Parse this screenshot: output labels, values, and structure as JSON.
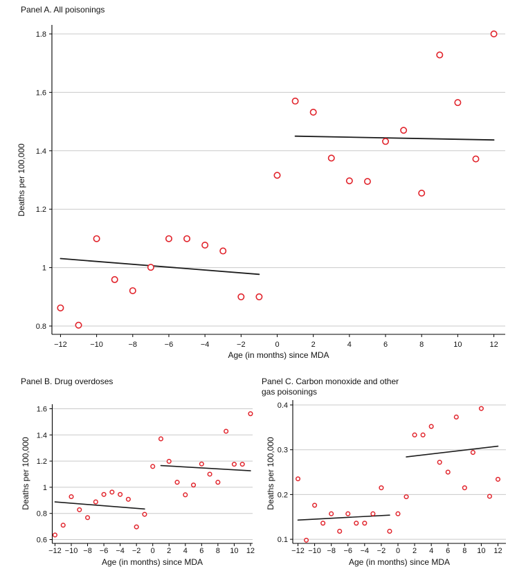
{
  "figure": {
    "background": "#ffffff",
    "marker_color": "#e1232b",
    "marker_fill": "#ffffff",
    "fit_line_color": "#1c1c1c",
    "grid_color": "#c9c9c9",
    "axis_color": "#000000",
    "text_color": "#111111"
  },
  "chart_data": [
    {
      "type": "scatter",
      "panel": "A",
      "title_lines": [
        "Panel A. All poisonings"
      ],
      "xlabel": "Age (in months) since MDA",
      "ylabel": "Deaths per 100,000",
      "x": [
        -12,
        -11,
        -10,
        -9,
        -8,
        -7,
        -6,
        -5,
        -4,
        -3,
        -2,
        -1,
        0,
        1,
        2,
        3,
        4,
        5,
        6,
        7,
        8,
        9,
        10,
        11,
        12
      ],
      "y": [
        0.862,
        0.803,
        1.099,
        0.959,
        0.921,
        1.001,
        1.099,
        1.099,
        1.077,
        1.057,
        0.9,
        0.9,
        1.316,
        1.57,
        1.532,
        1.375,
        1.297,
        1.295,
        1.432,
        1.47,
        1.255,
        1.728,
        1.565,
        1.372,
        1.8
      ],
      "fit_segments": [
        {
          "name": "pre",
          "x1": -12,
          "y1": 1.031,
          "x2": -1,
          "y2": 0.977
        },
        {
          "name": "post",
          "x1": 1,
          "y1": 1.45,
          "x2": 12,
          "y2": 1.437
        }
      ],
      "xticks": [
        -12,
        -10,
        -8,
        -6,
        -4,
        -2,
        0,
        2,
        4,
        6,
        8,
        10,
        12
      ],
      "xtick_labels": [
        "−12",
        "−10",
        "−8",
        "−6",
        "−4",
        "−2",
        "0",
        "2",
        "4",
        "6",
        "8",
        "10",
        "12"
      ],
      "yticks": [
        0.8,
        1.0,
        1.2,
        1.4,
        1.6,
        1.8
      ],
      "ytick_labels": [
        "0.8",
        "1",
        "1.2",
        "1.4",
        "1.6",
        "1.8"
      ],
      "xlim": [
        -12,
        12
      ],
      "ylim": [
        0.8,
        1.8
      ],
      "grid": "horizontal",
      "legend": "none"
    },
    {
      "type": "scatter",
      "panel": "B",
      "title_lines": [
        "Panel B. Drug overdoses"
      ],
      "xlabel": "Age (in months) since MDA",
      "ylabel": "Deaths per 100,000",
      "x": [
        -12,
        -11,
        -10,
        -9,
        -8,
        -7,
        -6,
        -5,
        -4,
        -3,
        -2,
        -1,
        0,
        1,
        2,
        3,
        4,
        5,
        6,
        7,
        8,
        9,
        10,
        11,
        12
      ],
      "y": [
        0.635,
        0.71,
        0.928,
        0.828,
        0.768,
        0.888,
        0.945,
        0.963,
        0.945,
        0.908,
        0.697,
        0.793,
        1.159,
        1.37,
        1.198,
        1.038,
        0.942,
        1.017,
        1.178,
        1.1,
        1.038,
        1.428,
        1.176,
        1.176,
        1.562
      ],
      "fit_segments": [
        {
          "name": "pre",
          "x1": -12,
          "y1": 0.888,
          "x2": -1,
          "y2": 0.834
        },
        {
          "name": "post",
          "x1": 1,
          "y1": 1.166,
          "x2": 12,
          "y2": 1.126
        }
      ],
      "xticks": [
        -12,
        -10,
        -8,
        -6,
        -4,
        -2,
        0,
        2,
        4,
        6,
        8,
        10,
        12
      ],
      "xtick_labels": [
        "−12",
        "−10",
        "−8",
        "−6",
        "−4",
        "−2",
        "0",
        "2",
        "4",
        "6",
        "8",
        "10",
        "12"
      ],
      "yticks": [
        0.6,
        0.8,
        1.0,
        1.2,
        1.4,
        1.6
      ],
      "ytick_labels": [
        "0.6",
        "0.8",
        "1",
        "1.2",
        "1.4",
        "1.6"
      ],
      "xlim": [
        -12,
        12
      ],
      "ylim": [
        0.6,
        1.6
      ],
      "grid": "horizontal",
      "legend": "none"
    },
    {
      "type": "scatter",
      "panel": "C",
      "title_lines": [
        "Panel C. Carbon monoxide and other",
        "gas poisonings"
      ],
      "xlabel": "Age (in months) since MDA",
      "ylabel": "Deaths per 100,000",
      "x": [
        -12,
        -11,
        -10,
        -9,
        -8,
        -7,
        -6,
        -5,
        -4,
        -3,
        -2,
        -1,
        0,
        1,
        2,
        3,
        4,
        5,
        6,
        7,
        8,
        9,
        10,
        11,
        12
      ],
      "y": [
        0.235,
        0.098,
        0.176,
        0.136,
        0.157,
        0.118,
        0.157,
        0.136,
        0.136,
        0.157,
        0.215,
        0.118,
        0.157,
        0.195,
        0.333,
        0.333,
        0.352,
        0.272,
        0.25,
        0.373,
        0.215,
        0.294,
        0.392,
        0.196,
        0.234
      ],
      "fit_segments": [
        {
          "name": "pre",
          "x1": -12,
          "y1": 0.143,
          "x2": -1,
          "y2": 0.154
        },
        {
          "name": "post",
          "x1": 1,
          "y1": 0.284,
          "x2": 12,
          "y2": 0.308
        }
      ],
      "xticks": [
        -12,
        -10,
        -8,
        -6,
        -4,
        -2,
        0,
        2,
        4,
        6,
        8,
        10,
        12
      ],
      "xtick_labels": [
        "−12",
        "−10",
        "−8",
        "−6",
        "−4",
        "−2",
        "0",
        "2",
        "4",
        "6",
        "8",
        "10",
        "12"
      ],
      "yticks": [
        0.1,
        0.2,
        0.3,
        0.4
      ],
      "ytick_labels": [
        "0.1",
        "0.2",
        "0.3",
        "0.4"
      ],
      "xlim": [
        -12,
        12
      ],
      "ylim": [
        0.1,
        0.4
      ],
      "grid": "horizontal",
      "legend": "none"
    }
  ]
}
